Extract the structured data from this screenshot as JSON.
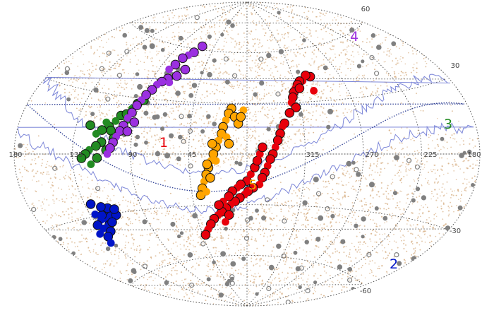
{
  "chart_data": {
    "type": "scatter",
    "projection": "aitoff",
    "title": "",
    "xlabel": "",
    "ylabel": "",
    "grid": true,
    "x_ticks": [
      "180",
      "135",
      "90",
      "45",
      "315",
      "270",
      "225",
      "180"
    ],
    "y_ticks": [
      "60",
      "30",
      "-30",
      "-60"
    ],
    "colors": {
      "group1": "#e8000b",
      "group2": "#0014c8",
      "group3": "#228b22",
      "group4": "#9b30e0",
      "group5": "#ffa500",
      "background": "#d9b48c",
      "gray": "#808080",
      "dark_line": "#3a4a9a",
      "light_line": "#7c86d8"
    },
    "groups": [
      {
        "label": "1",
        "color": "#e8000b",
        "points": [
          [
            62,
            44
          ],
          [
            58,
            45
          ],
          [
            53,
            42
          ],
          [
            50,
            42
          ],
          [
            47,
            40
          ],
          [
            44,
            38
          ],
          [
            42,
            36
          ],
          [
            40,
            33
          ],
          [
            38,
            30
          ],
          [
            41,
            27
          ],
          [
            48,
            38
          ],
          [
            60,
            36
          ],
          [
            35,
            24
          ],
          [
            30,
            18
          ],
          [
            28,
            16
          ],
          [
            26,
            12
          ],
          [
            24,
            8
          ],
          [
            22,
            4
          ],
          [
            20,
            0
          ],
          [
            18,
            -3
          ],
          [
            16,
            -7
          ],
          [
            14,
            -11
          ],
          [
            12,
            -14
          ],
          [
            10,
            -18
          ],
          [
            5,
            -20
          ],
          [
            1,
            -22
          ],
          [
            -2,
            -24
          ],
          [
            -6,
            -26
          ],
          [
            -10,
            -28
          ],
          [
            -14,
            -30
          ],
          [
            -18,
            -32
          ],
          [
            -22,
            -34
          ],
          [
            -26,
            -36
          ],
          [
            -30,
            -38
          ],
          [
            -34,
            -41
          ],
          [
            -38,
            -44
          ],
          [
            -42,
            -47
          ],
          [
            0,
            -16
          ],
          [
            3,
            -12
          ],
          [
            6,
            -8
          ],
          [
            8,
            -4
          ],
          [
            10,
            0
          ],
          [
            12,
            4
          ],
          [
            -5,
            -18
          ],
          [
            -8,
            -20
          ],
          [
            -12,
            -22
          ],
          [
            -15,
            -25
          ],
          [
            -20,
            -28
          ],
          [
            -24,
            -30
          ],
          [
            -16,
            -36
          ],
          [
            -20,
            -40
          ]
        ]
      },
      {
        "label": "2",
        "color": "#0014c8",
        "points": [
          [
            244,
            -29
          ],
          [
            240,
            -31
          ],
          [
            236,
            -32
          ],
          [
            238,
            -28
          ],
          [
            234,
            -30
          ],
          [
            231,
            -32
          ],
          [
            235,
            -35
          ],
          [
            242,
            -27
          ],
          [
            229,
            -29
          ],
          [
            246,
            -31
          ],
          [
            225,
            -34
          ],
          [
            228,
            -36
          ],
          [
            232,
            -38
          ],
          [
            226,
            -40
          ],
          [
            221,
            -38
          ],
          [
            237,
            -26
          ],
          [
            247,
            -28
          ],
          [
            223,
            -43
          ],
          [
            230,
            -24
          ],
          [
            239,
            -34
          ]
        ]
      },
      {
        "label": "3",
        "color": "#228b22",
        "points": [
          [
            272,
            29
          ],
          [
            268,
            27
          ],
          [
            265,
            24
          ],
          [
            258,
            20
          ],
          [
            262,
            21
          ],
          [
            255,
            17
          ],
          [
            251,
            14
          ],
          [
            246,
            12
          ],
          [
            242,
            10
          ],
          [
            247,
            6
          ],
          [
            243,
            4
          ],
          [
            238,
            2
          ],
          [
            235,
            0
          ],
          [
            232,
            -2
          ],
          [
            248,
            16
          ],
          [
            253,
            12
          ],
          [
            256,
            8
          ],
          [
            239,
            -5
          ],
          [
            244,
            -2
          ],
          [
            251,
            2
          ],
          [
            264,
            18
          ],
          [
            236,
            14
          ]
        ]
      },
      {
        "label": "4",
        "color": "#9b30e0",
        "points": [
          [
            299,
            62
          ],
          [
            294,
            58
          ],
          [
            290,
            56
          ],
          [
            286,
            54
          ],
          [
            283,
            50
          ],
          [
            280,
            47
          ],
          [
            284,
            42
          ],
          [
            280,
            40
          ],
          [
            277,
            38
          ],
          [
            275,
            35
          ],
          [
            272,
            32
          ],
          [
            270,
            29
          ],
          [
            268,
            26
          ],
          [
            266,
            22
          ],
          [
            264,
            19
          ],
          [
            262,
            15
          ],
          [
            260,
            12
          ],
          [
            258,
            9
          ],
          [
            256,
            6
          ],
          [
            254,
            3
          ],
          [
            252,
            0
          ],
          [
            296,
            48
          ],
          [
            291,
            44
          ],
          [
            287,
            40
          ],
          [
            270,
            17
          ],
          [
            266,
            12
          ]
        ]
      },
      {
        "label": "5",
        "color": "#ffa500",
        "points": [
          [
            347,
            27
          ],
          [
            345,
            24
          ],
          [
            343,
            20
          ],
          [
            341,
            16
          ],
          [
            340,
            12
          ],
          [
            338,
            8
          ],
          [
            336,
            4
          ],
          [
            334,
            0
          ],
          [
            332,
            -4
          ],
          [
            330,
            -8
          ],
          [
            328,
            -12
          ],
          [
            326,
            -16
          ],
          [
            324,
            -20
          ],
          [
            322,
            -24
          ],
          [
            327,
            -22
          ],
          [
            350,
            22
          ],
          [
            353,
            18
          ],
          [
            344,
            10
          ],
          [
            346,
            6
          ],
          [
            333,
            6
          ],
          [
            336,
            -4
          ],
          [
            331,
            -14
          ],
          [
            329,
            -6
          ],
          [
            357,
            26
          ],
          [
            355,
            22
          ]
        ]
      }
    ]
  }
}
